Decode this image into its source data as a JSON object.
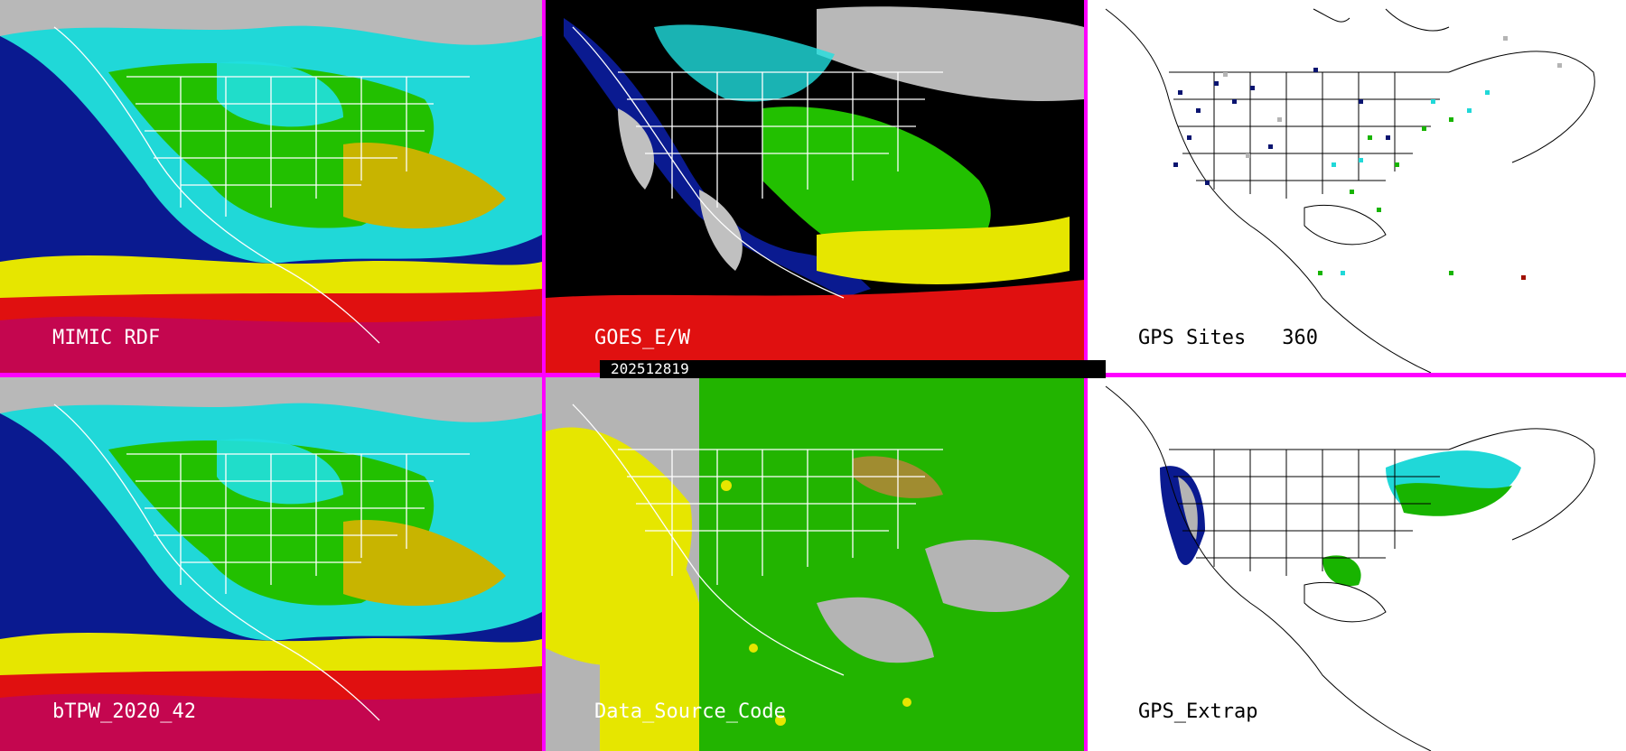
{
  "panels": [
    {
      "id": "mimic",
      "label": "MIMIC RDF"
    },
    {
      "id": "goes",
      "label": "GOES_E/W"
    },
    {
      "id": "gps",
      "label": "GPS Sites",
      "count": "360"
    },
    {
      "id": "btpw",
      "label": "bTPW_2020_42"
    },
    {
      "id": "dsc",
      "label": "Data_Source_Code"
    },
    {
      "id": "gpsx",
      "label": "GPS_Extrap"
    }
  ],
  "timestamp": "202512819",
  "colors": {
    "divider": "#ff00ff",
    "gray": "#b4b4b4",
    "navy": "#0a1470",
    "blue": "#2040d0",
    "cyan": "#20e0e0",
    "green": "#18b400",
    "yellow": "#e6e600",
    "olive": "#b4a000",
    "red": "#d80000",
    "magenta": "#c800c8"
  }
}
